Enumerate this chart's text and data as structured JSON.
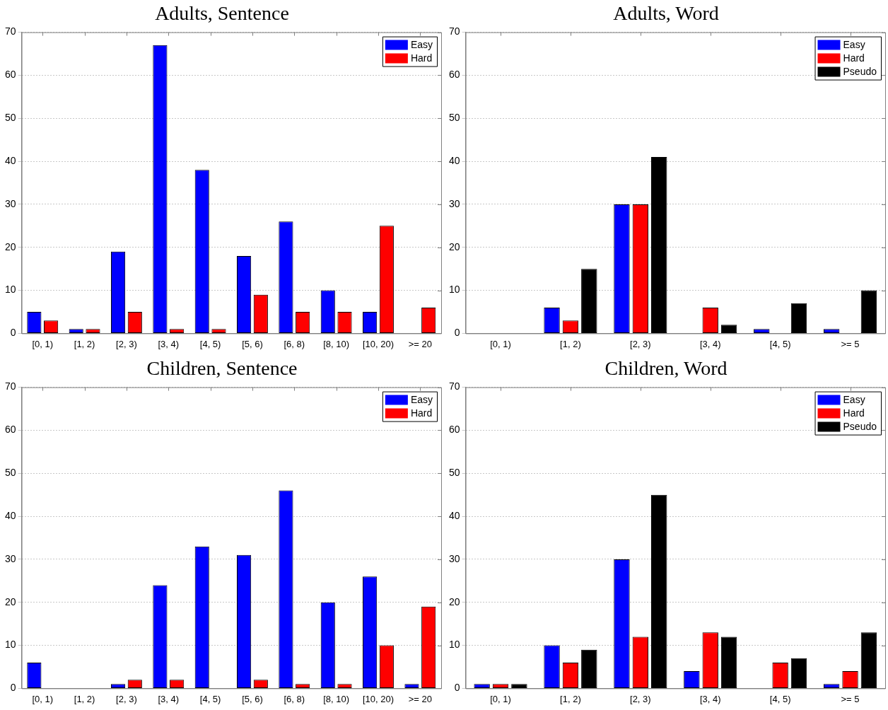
{
  "chart_data": [
    {
      "type": "bar",
      "title": "Adults, Sentence",
      "categories": [
        "[0, 1)",
        "[1, 2)",
        "[2, 3)",
        "[3, 4)",
        "[4, 5)",
        "[5, 6)",
        "[6, 8)",
        "[8, 10)",
        "[10, 20)",
        ">= 20"
      ],
      "series": [
        {
          "name": "Easy",
          "color": "#0000ff",
          "values": [
            5,
            1,
            19,
            67,
            38,
            18,
            26,
            10,
            5,
            0
          ]
        },
        {
          "name": "Hard",
          "color": "#ff0000",
          "values": [
            3,
            1,
            5,
            1,
            1,
            9,
            5,
            5,
            25,
            6
          ]
        }
      ],
      "ylim": [
        0,
        70
      ],
      "yticks": [
        0,
        10,
        20,
        30,
        40,
        50,
        60,
        70
      ],
      "grid": "y",
      "legend": "top right"
    },
    {
      "type": "bar",
      "title": "Adults, Word",
      "categories": [
        "[0, 1)",
        "[1, 2)",
        "[2, 3)",
        "[3, 4)",
        "[4, 5)",
        ">= 5"
      ],
      "series": [
        {
          "name": "Easy",
          "color": "#0000ff",
          "values": [
            0,
            6,
            30,
            0,
            1,
            1
          ]
        },
        {
          "name": "Hard",
          "color": "#ff0000",
          "values": [
            0,
            3,
            30,
            6,
            0,
            0
          ]
        },
        {
          "name": "Pseudo",
          "color": "#000000",
          "values": [
            0,
            15,
            41,
            2,
            7,
            10
          ]
        }
      ],
      "ylim": [
        0,
        70
      ],
      "yticks": [
        0,
        10,
        20,
        30,
        40,
        50,
        60,
        70
      ],
      "grid": "y",
      "legend": "top right"
    },
    {
      "type": "bar",
      "title": "Children, Sentence",
      "categories": [
        "[0, 1)",
        "[1, 2)",
        "[2, 3)",
        "[3, 4)",
        "[4, 5)",
        "[5, 6)",
        "[6, 8)",
        "[8, 10)",
        "[10, 20)",
        ">= 20"
      ],
      "series": [
        {
          "name": "Easy",
          "color": "#0000ff",
          "values": [
            6,
            0,
            1,
            24,
            33,
            31,
            46,
            20,
            26,
            1
          ]
        },
        {
          "name": "Hard",
          "color": "#ff0000",
          "values": [
            0,
            0,
            2,
            2,
            0,
            2,
            1,
            1,
            10,
            19
          ]
        }
      ],
      "ylim": [
        0,
        70
      ],
      "yticks": [
        0,
        10,
        20,
        30,
        40,
        50,
        60,
        70
      ],
      "grid": "y",
      "legend": "top right"
    },
    {
      "type": "bar",
      "title": "Children, Word",
      "categories": [
        "[0, 1)",
        "[1, 2)",
        "[2, 3)",
        "[3, 4)",
        "[4, 5)",
        ">= 5"
      ],
      "series": [
        {
          "name": "Easy",
          "color": "#0000ff",
          "values": [
            1,
            10,
            30,
            4,
            0,
            1
          ]
        },
        {
          "name": "Hard",
          "color": "#ff0000",
          "values": [
            1,
            6,
            12,
            13,
            6,
            4
          ]
        },
        {
          "name": "Pseudo",
          "color": "#000000",
          "values": [
            1,
            9,
            45,
            12,
            7,
            13
          ]
        }
      ],
      "ylim": [
        0,
        70
      ],
      "yticks": [
        0,
        10,
        20,
        30,
        40,
        50,
        60,
        70
      ],
      "grid": "y",
      "legend": "top right"
    }
  ]
}
